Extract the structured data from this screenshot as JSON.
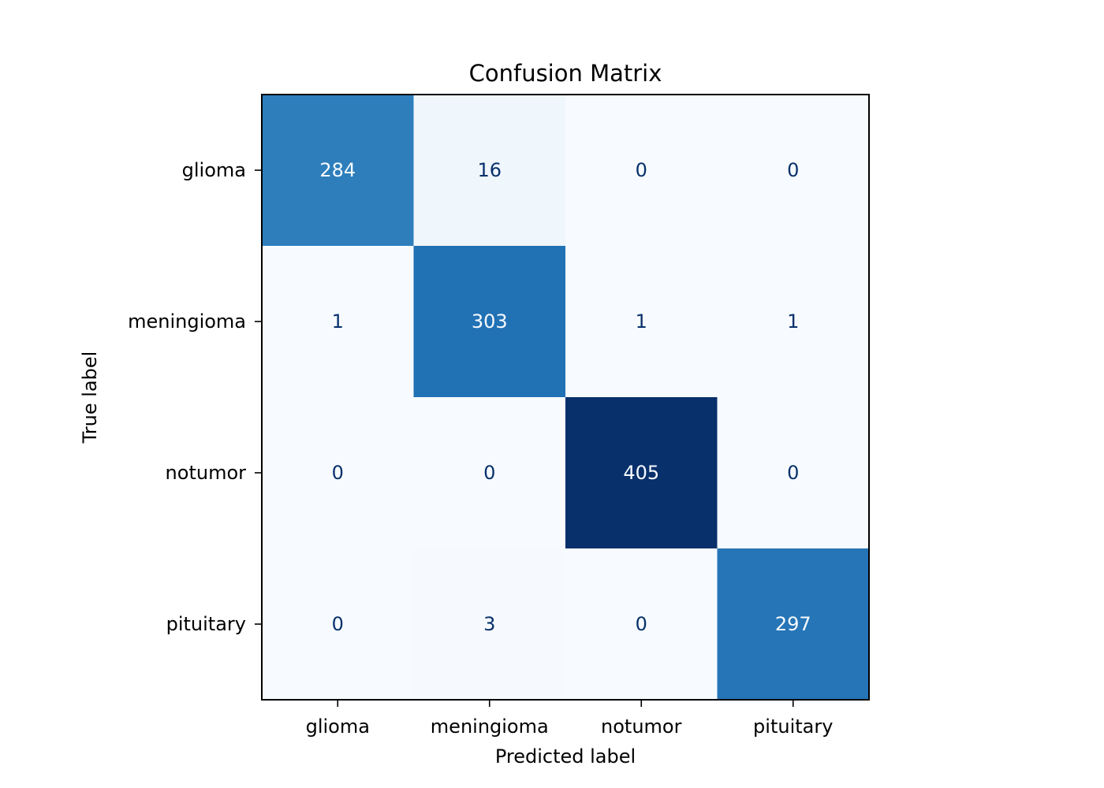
{
  "chart_data": {
    "type": "heatmap",
    "title": "Confusion Matrix",
    "xlabel": "Predicted label",
    "ylabel": "True label",
    "x_categories": [
      "glioma",
      "meningioma",
      "notumor",
      "pituitary"
    ],
    "y_categories": [
      "glioma",
      "meningioma",
      "notumor",
      "pituitary"
    ],
    "values": [
      [
        284,
        16,
        0,
        0
      ],
      [
        1,
        303,
        1,
        1
      ],
      [
        0,
        0,
        405,
        0
      ],
      [
        0,
        3,
        0,
        297
      ]
    ],
    "colormap": "Blues",
    "colors": {
      "low": "#f7fbff",
      "high": "#08306b",
      "text_dark": "#08306b",
      "text_light": "#f7fbff"
    }
  }
}
